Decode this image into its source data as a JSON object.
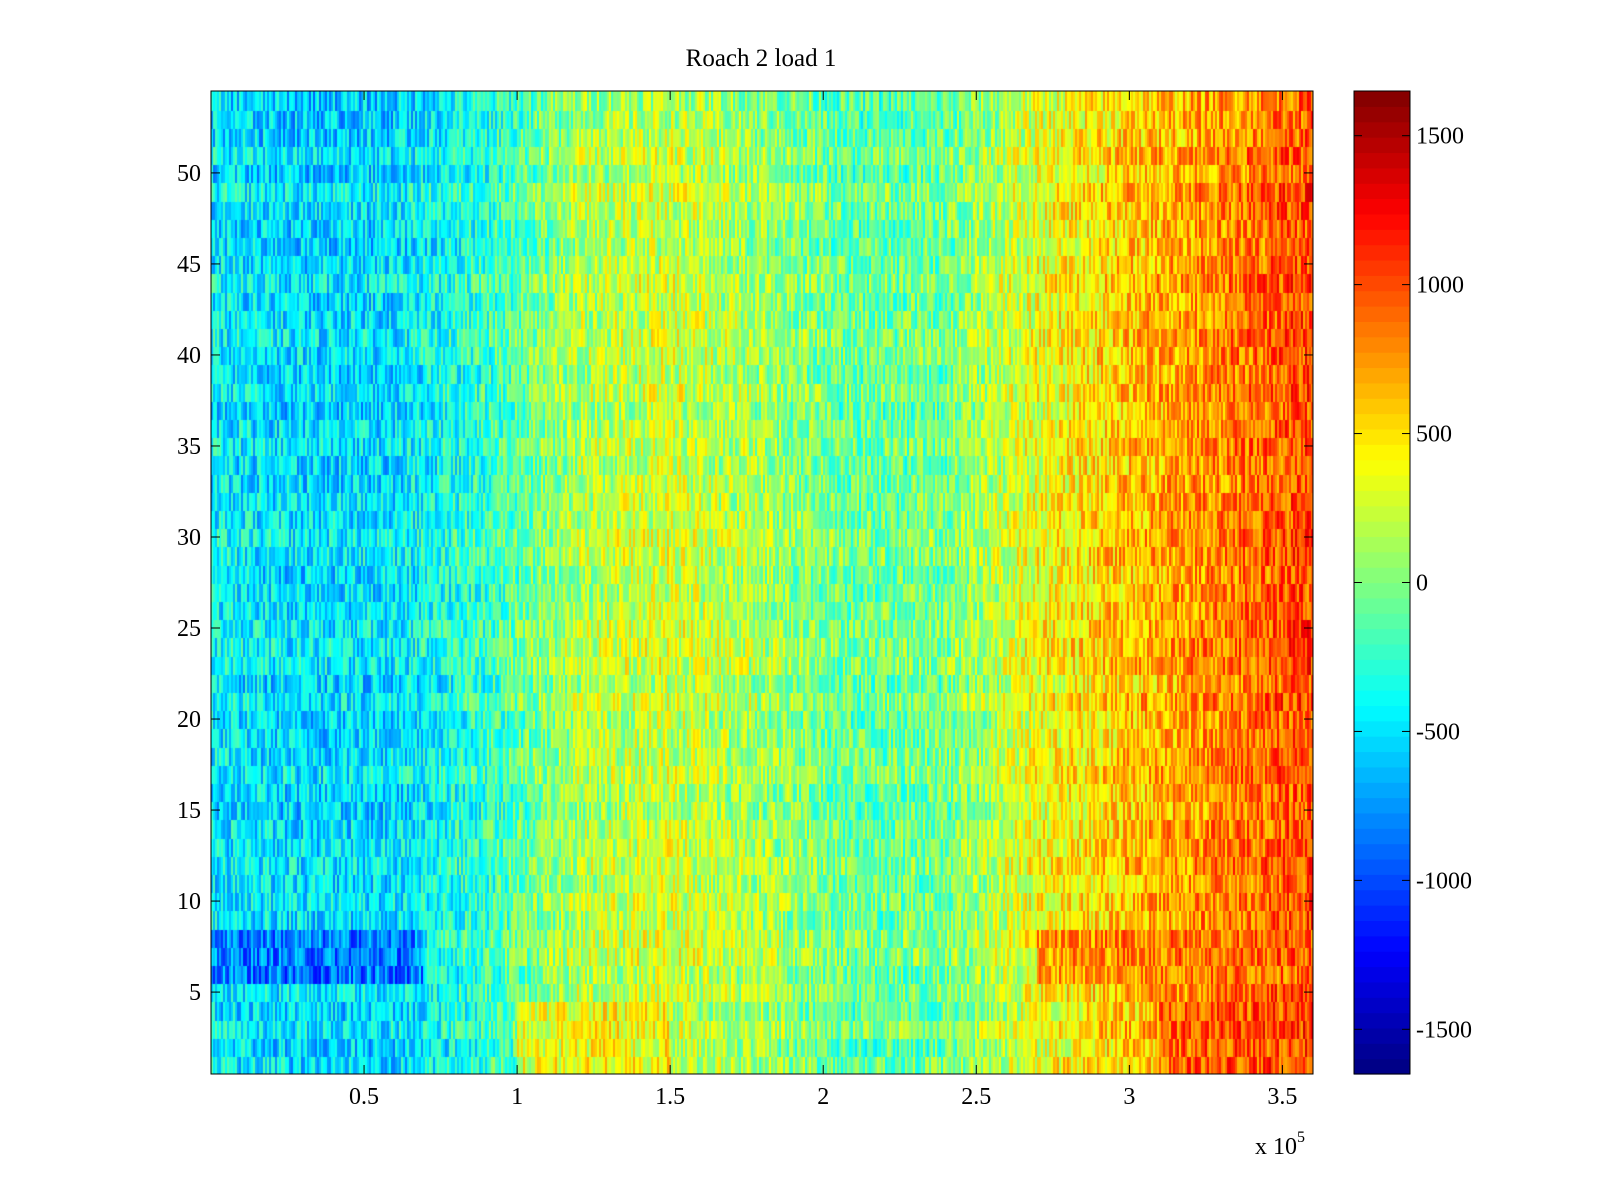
{
  "chart_data": {
    "type": "heatmap",
    "title": "Roach 2 load 1",
    "xlabel": "",
    "ylabel": "",
    "x_multiplier_label": "x 10",
    "x_multiplier_exponent": "5",
    "xlim": [
      0,
      360000
    ],
    "ylim": [
      0.5,
      54.5
    ],
    "x_ticks": [
      {
        "value": 50000,
        "label": "0.5"
      },
      {
        "value": 100000,
        "label": "1"
      },
      {
        "value": 150000,
        "label": "1.5"
      },
      {
        "value": 200000,
        "label": "2"
      },
      {
        "value": 250000,
        "label": "2.5"
      },
      {
        "value": 300000,
        "label": "3"
      },
      {
        "value": 350000,
        "label": "3.5"
      }
    ],
    "y_ticks": [
      {
        "value": 5,
        "label": "5"
      },
      {
        "value": 10,
        "label": "10"
      },
      {
        "value": 15,
        "label": "15"
      },
      {
        "value": 20,
        "label": "20"
      },
      {
        "value": 25,
        "label": "25"
      },
      {
        "value": 30,
        "label": "30"
      },
      {
        "value": 35,
        "label": "35"
      },
      {
        "value": 40,
        "label": "40"
      },
      {
        "value": 45,
        "label": "45"
      },
      {
        "value": 50,
        "label": "50"
      }
    ],
    "colorbar": {
      "colormap": "jet",
      "clim": [
        -1650,
        1650
      ],
      "ticks": [
        {
          "value": 1500,
          "label": "1500"
        },
        {
          "value": 1000,
          "label": "1000"
        },
        {
          "value": 500,
          "label": "500"
        },
        {
          "value": 0,
          "label": "0"
        },
        {
          "value": -500,
          "label": "-500"
        },
        {
          "value": -1000,
          "label": "-1000"
        },
        {
          "value": -1500,
          "label": "-1500"
        }
      ]
    },
    "rows": 54,
    "trend_profile": {
      "x": [
        0,
        30000,
        60000,
        90000,
        120000,
        150000,
        180000,
        210000,
        240000,
        270000,
        300000,
        330000,
        360000
      ],
      "value": [
        -450,
        -520,
        -500,
        -250,
        150,
        250,
        100,
        -100,
        -50,
        350,
        600,
        800,
        1000
      ]
    },
    "noise_amplitude": 350,
    "anomaly_rows": [
      {
        "rows": [
          6,
          7,
          8
        ],
        "x_range": [
          0,
          70000
        ],
        "value": -1050
      },
      {
        "rows": [
          6,
          7,
          8
        ],
        "x_range": [
          270000,
          360000
        ],
        "value": 900
      },
      {
        "rows": [
          1,
          2,
          3,
          4
        ],
        "x_range": [
          100000,
          150000
        ],
        "value": 500
      },
      {
        "rows": [
          1,
          2,
          3,
          4
        ],
        "x_range": [
          310000,
          360000
        ],
        "value": 1050
      }
    ],
    "grid": false,
    "legend": "none"
  }
}
